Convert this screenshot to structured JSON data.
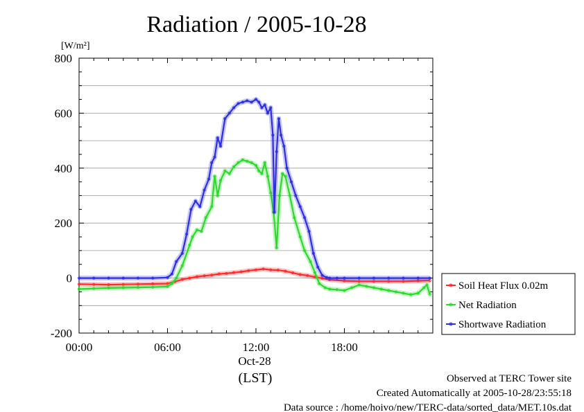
{
  "chart_data": {
    "type": "line",
    "title": "Radiation / 2005-10-28",
    "ylabel": "[W/m²]",
    "xlabel": "(LST)",
    "date_label": "Oct-28",
    "ylim": [
      -200,
      800
    ],
    "y_ticks": [
      -200,
      0,
      200,
      400,
      600,
      800
    ],
    "y_tick_labels": [
      "-200",
      "0",
      "200",
      "400",
      "600",
      "800"
    ],
    "xlim": [
      0,
      24
    ],
    "x_ticks": [
      0,
      6,
      12,
      18
    ],
    "x_tick_labels": [
      "00:00",
      "06:00",
      "12:00",
      "18:00"
    ],
    "grid": true,
    "legend_position": "right",
    "series": [
      {
        "name": "Soil Heat Flux 0.02m",
        "color": "#ff2a2a",
        "x": [
          0,
          1,
          2,
          3,
          4,
          5,
          6,
          6.5,
          7,
          7.5,
          8,
          8.5,
          9,
          9.5,
          10,
          10.5,
          11,
          11.5,
          12,
          12.5,
          13,
          13.5,
          14,
          14.5,
          15,
          15.5,
          16,
          16.5,
          17,
          18,
          19,
          20,
          21,
          22,
          23,
          23.8
        ],
        "values": [
          -22,
          -23,
          -24,
          -23,
          -22,
          -21,
          -20,
          -13,
          -5,
          0,
          5,
          8,
          11,
          15,
          17,
          20,
          23,
          27,
          30,
          33,
          30,
          29,
          25,
          19,
          13,
          9,
          4,
          -1,
          -6,
          -10,
          -12,
          -12,
          -12,
          -12,
          -10,
          -9
        ]
      },
      {
        "name": "Net Radiation",
        "color": "#2ed82e",
        "x": [
          0,
          1,
          2,
          3,
          4,
          5,
          6,
          6.3,
          6.6,
          7,
          7.5,
          7.7,
          8,
          8.3,
          8.6,
          9,
          9.2,
          9.4,
          9.6,
          9.9,
          10.2,
          10.5,
          10.8,
          11.1,
          11.4,
          11.7,
          12,
          12.2,
          12.4,
          12.6,
          12.8,
          13.0,
          13.2,
          13.4,
          13.6,
          13.8,
          14.0,
          14.3,
          14.6,
          15,
          15.3,
          15.7,
          16,
          16.3,
          16.7,
          17,
          17.5,
          18,
          18.5,
          19,
          19.5,
          20,
          20.5,
          21,
          21.5,
          22,
          22.5,
          23,
          23.4,
          23.6,
          23.8
        ],
        "values": [
          -40,
          -38,
          -36,
          -35,
          -34,
          -33,
          -31,
          -20,
          0,
          45,
          120,
          150,
          175,
          170,
          220,
          260,
          370,
          300,
          355,
          390,
          380,
          405,
          420,
          430,
          425,
          420,
          410,
          390,
          380,
          420,
          370,
          310,
          240,
          110,
          300,
          380,
          370,
          300,
          220,
          150,
          100,
          60,
          20,
          -20,
          -35,
          -40,
          -42,
          -45,
          -35,
          -25,
          -30,
          -35,
          -40,
          -45,
          -50,
          -55,
          -60,
          -55,
          -35,
          -25,
          -60
        ]
      },
      {
        "name": "Shortwave Radiation",
        "color": "#2e2ee0",
        "x": [
          0,
          1,
          2,
          3,
          4,
          5,
          6,
          6.3,
          6.6,
          7,
          7.3,
          7.6,
          7.9,
          8.2,
          8.5,
          8.8,
          9.0,
          9.2,
          9.4,
          9.6,
          9.9,
          10.2,
          10.5,
          10.8,
          11.1,
          11.4,
          11.7,
          12,
          12.2,
          12.4,
          12.6,
          12.8,
          13.0,
          13.15,
          13.25,
          13.4,
          13.55,
          13.7,
          13.9,
          14.1,
          14.4,
          14.7,
          15,
          15.3,
          15.6,
          15.9,
          16.2,
          16.5,
          16.8,
          17,
          17.5,
          18,
          19,
          20,
          21,
          22,
          23,
          23.8
        ],
        "values": [
          0,
          0,
          0,
          0,
          0,
          0,
          2,
          15,
          60,
          90,
          160,
          250,
          280,
          260,
          320,
          360,
          420,
          440,
          510,
          480,
          580,
          600,
          620,
          635,
          640,
          645,
          640,
          650,
          640,
          620,
          630,
          600,
          620,
          520,
          240,
          460,
          580,
          520,
          480,
          400,
          350,
          300,
          260,
          220,
          170,
          90,
          40,
          10,
          2,
          0,
          0,
          0,
          0,
          0,
          0,
          0,
          0,
          0
        ]
      }
    ]
  },
  "footer": {
    "site": "Observed at TERC Tower site",
    "created": "Created Automatically at 2005-10-28/23:55:18",
    "source": "Data source : /home/hoivo/new/TERC-data/sorted_data/MET.10s.dat"
  }
}
